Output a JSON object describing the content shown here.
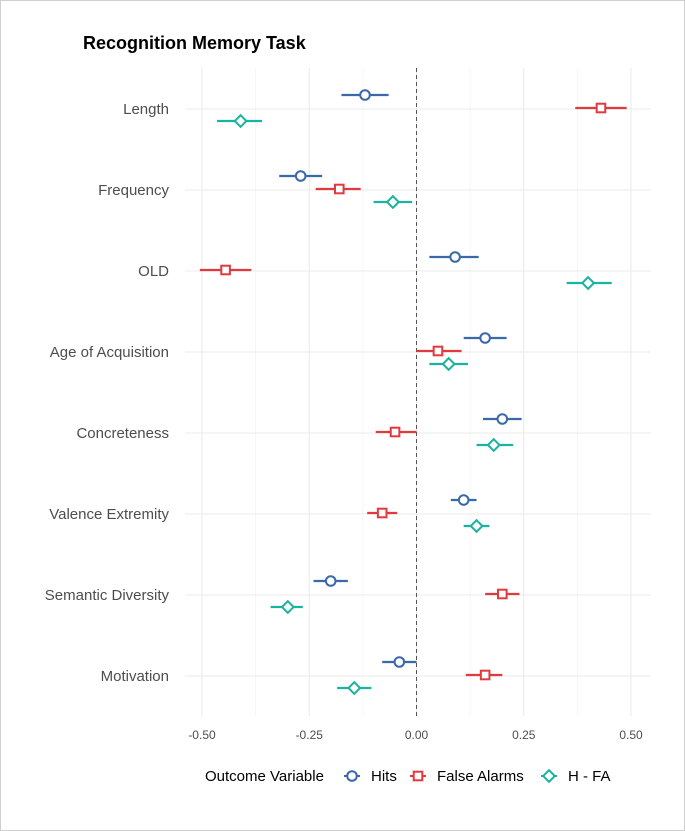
{
  "chart_data": {
    "type": "dot-and-whisker",
    "title": "Recognition Memory Task",
    "xlabel": "",
    "ylabel": "",
    "xlim": [
      -0.5,
      0.5
    ],
    "x_ticks": [
      -0.5,
      -0.25,
      0.0,
      0.25,
      0.5
    ],
    "x_tick_labels": [
      "-0.50",
      "-0.25",
      "0.00",
      "0.25",
      "0.50"
    ],
    "reference_line": 0.0,
    "categories": [
      "Length",
      "Frequency",
      "OLD",
      "Age of Acquisition",
      "Concreteness",
      "Valence Extremity",
      "Semantic Diversity",
      "Motivation"
    ],
    "series": [
      {
        "name": "Hits",
        "marker": "circle",
        "color": "#3a68a8",
        "estimates": [
          -0.12,
          -0.27,
          0.09,
          0.16,
          0.2,
          0.11,
          -0.2,
          -0.04
        ],
        "ci_low": [
          -0.175,
          -0.32,
          0.03,
          0.11,
          0.155,
          0.08,
          -0.24,
          -0.08
        ],
        "ci_high": [
          -0.065,
          -0.22,
          0.145,
          0.21,
          0.245,
          0.14,
          -0.16,
          0.0
        ]
      },
      {
        "name": "False Alarms",
        "marker": "square",
        "color": "#e0393e",
        "estimates": [
          0.43,
          -0.18,
          -0.445,
          0.05,
          -0.05,
          -0.08,
          0.2,
          0.16
        ],
        "ci_low": [
          0.37,
          -0.235,
          -0.505,
          0.0,
          -0.095,
          -0.115,
          0.16,
          0.115
        ],
        "ci_high": [
          0.49,
          -0.13,
          -0.385,
          0.105,
          0.0,
          -0.045,
          0.24,
          0.2
        ]
      },
      {
        "name": "H - FA",
        "marker": "diamond",
        "color": "#1ab2a0",
        "estimates": [
          -0.41,
          -0.055,
          0.4,
          0.075,
          0.18,
          0.14,
          -0.3,
          -0.145
        ],
        "ci_low": [
          -0.465,
          -0.1,
          0.35,
          0.03,
          0.14,
          0.11,
          -0.34,
          -0.185
        ],
        "ci_high": [
          -0.36,
          -0.01,
          0.455,
          0.12,
          0.225,
          0.17,
          -0.265,
          -0.105
        ]
      }
    ],
    "grid": true,
    "legend": {
      "title": "Outcome Variable",
      "position": "bottom",
      "entries": [
        "Hits",
        "False Alarms",
        "H - FA"
      ]
    }
  }
}
